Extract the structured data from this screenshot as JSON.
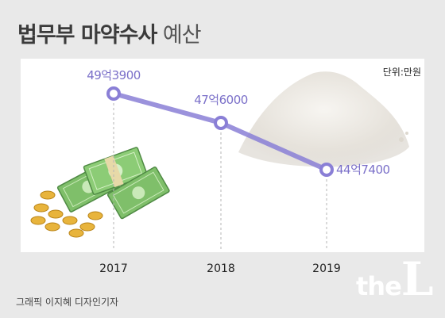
{
  "header": {
    "title_bold": "법무부 마약수사",
    "title_light": "예산"
  },
  "unit_label": "단위:만원",
  "credit": "그래픽 이지혜 디자인기자",
  "logo": {
    "prefix": "the",
    "letter": "L"
  },
  "colors": {
    "line": "#8a7fd6",
    "marker_fill": "#ffffff",
    "value_text": "#7b70c9",
    "background": "#e9e9e9"
  },
  "chart_data": {
    "type": "line",
    "categories": [
      "2017",
      "2018",
      "2019"
    ],
    "series": [
      {
        "values": [
          493900,
          476000,
          447400
        ],
        "labels": [
          "49억3900",
          "47억6000",
          "44억7400"
        ]
      }
    ],
    "unit": "단위:만원",
    "ylim": [
      440000,
      500000
    ],
    "grid": false,
    "legend": "none"
  }
}
